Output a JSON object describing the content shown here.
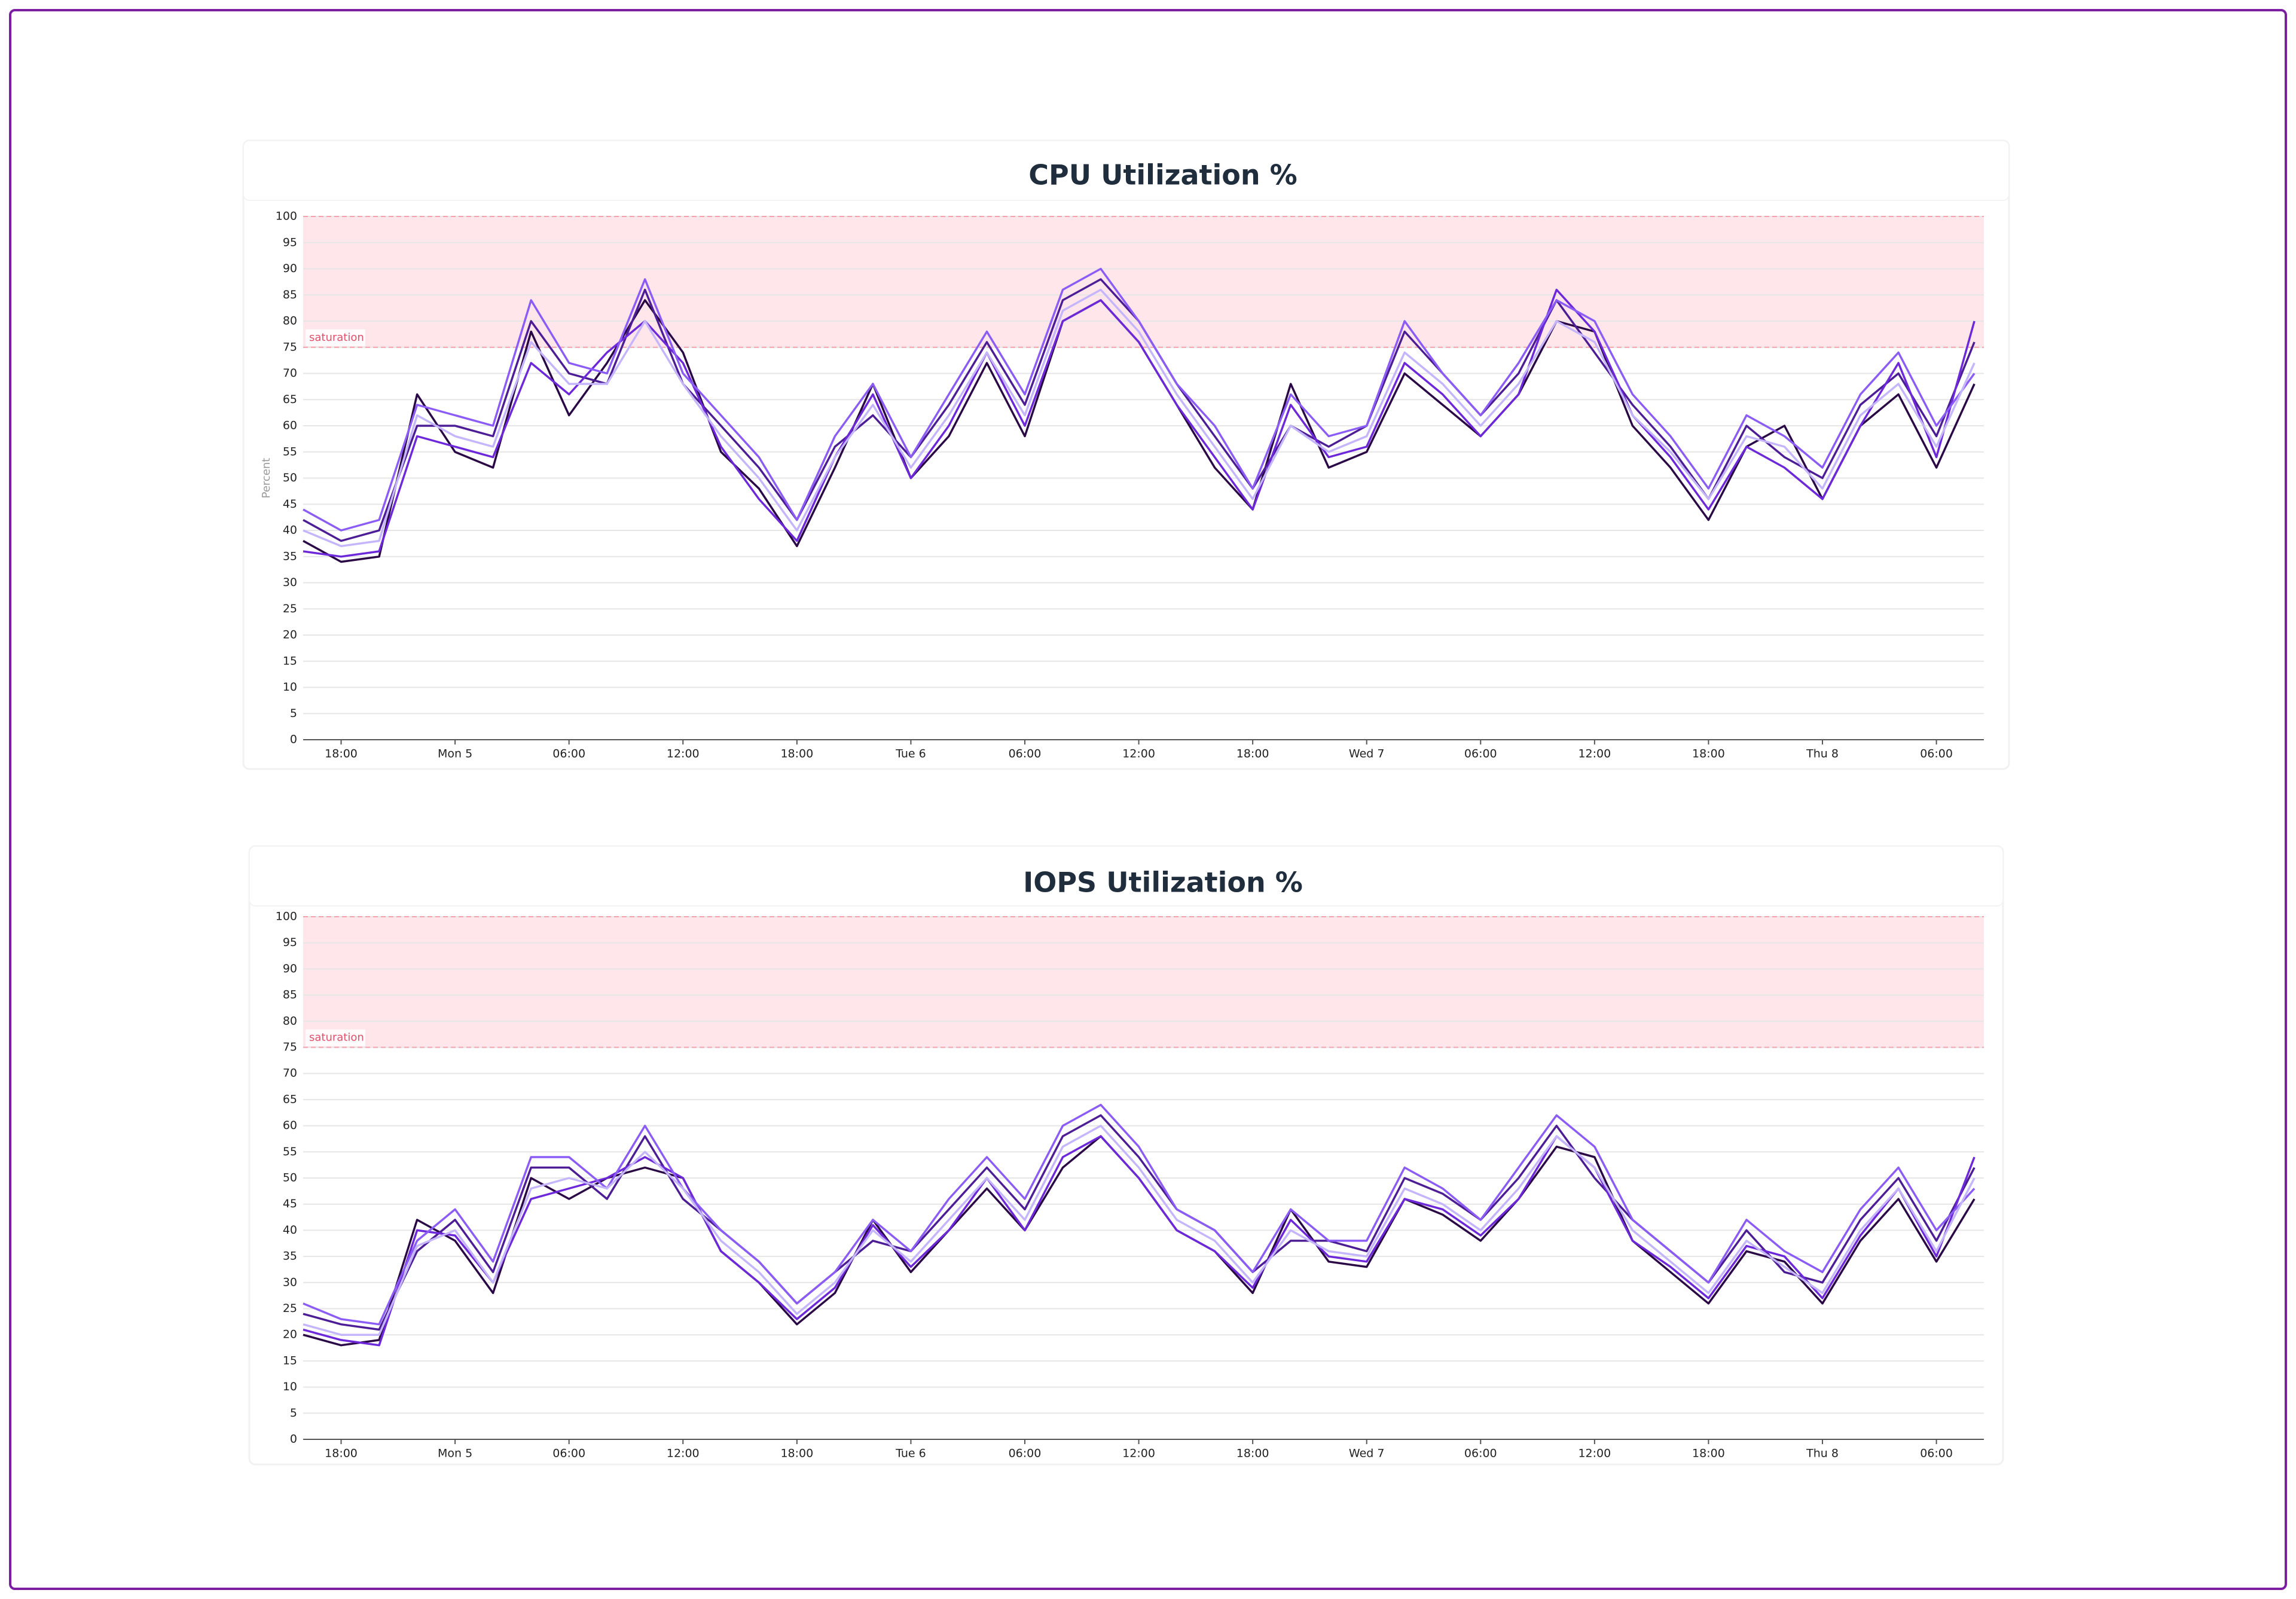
{
  "chart_data": [
    {
      "type": "line",
      "title": "CPU Utilization %",
      "y_label": "Percent",
      "band": {
        "from": 75,
        "to": 100,
        "label": "saturation"
      },
      "x": [
        -8,
        -6,
        -4,
        -2,
        0,
        2,
        4,
        6,
        8,
        10,
        12,
        14,
        16,
        18,
        20,
        22,
        24,
        26,
        28,
        30,
        32,
        34,
        36,
        38,
        40,
        42,
        44,
        46,
        48,
        50,
        52,
        54,
        56,
        58,
        60,
        62,
        64,
        66,
        68,
        70,
        72,
        74,
        76,
        78,
        80
      ],
      "xlim": [
        -8,
        80.5
      ],
      "xticks": [
        {
          "value": -6,
          "label": "18:00"
        },
        {
          "value": 0,
          "label": "Mon 5"
        },
        {
          "value": 6,
          "label": "06:00"
        },
        {
          "value": 12,
          "label": "12:00"
        },
        {
          "value": 18,
          "label": "18:00"
        },
        {
          "value": 24,
          "label": "Tue 6"
        },
        {
          "value": 30,
          "label": "06:00"
        },
        {
          "value": 36,
          "label": "12:00"
        },
        {
          "value": 42,
          "label": "18:00"
        },
        {
          "value": 48,
          "label": "Wed 7"
        },
        {
          "value": 54,
          "label": "06:00"
        },
        {
          "value": 60,
          "label": "12:00"
        },
        {
          "value": 66,
          "label": "18:00"
        },
        {
          "value": 72,
          "label": "Thu 8"
        },
        {
          "value": 78,
          "label": "06:00"
        }
      ],
      "ylim": [
        0,
        100
      ],
      "yticks": [
        0,
        5,
        10,
        15,
        20,
        25,
        30,
        35,
        40,
        45,
        50,
        55,
        60,
        65,
        70,
        75,
        80,
        85,
        90,
        95,
        100
      ],
      "grid": true,
      "series": [
        {
          "color": "#2a0845",
          "values": [
            38,
            34,
            35,
            66,
            55,
            52,
            78,
            62,
            72,
            84,
            74,
            55,
            48,
            37,
            52,
            68,
            50,
            58,
            72,
            58,
            80,
            84,
            76,
            64,
            52,
            44,
            68,
            52,
            55,
            70,
            64,
            58,
            66,
            80,
            78,
            60,
            52,
            42,
            56,
            60,
            46,
            60,
            66,
            52,
            68
          ]
        },
        {
          "color": "#4c1d95",
          "values": [
            42,
            38,
            40,
            60,
            60,
            58,
            80,
            70,
            68,
            86,
            68,
            60,
            52,
            42,
            56,
            62,
            54,
            64,
            76,
            64,
            84,
            88,
            80,
            68,
            58,
            48,
            60,
            56,
            60,
            78,
            70,
            62,
            70,
            84,
            74,
            64,
            56,
            46,
            60,
            54,
            50,
            64,
            70,
            58,
            76
          ]
        },
        {
          "color": "#6d28d9",
          "values": [
            36,
            35,
            36,
            58,
            56,
            54,
            72,
            66,
            74,
            80,
            72,
            56,
            46,
            38,
            54,
            66,
            50,
            60,
            74,
            60,
            80,
            84,
            76,
            64,
            54,
            44,
            64,
            54,
            56,
            72,
            66,
            58,
            66,
            86,
            78,
            62,
            54,
            44,
            56,
            52,
            46,
            60,
            72,
            54,
            80
          ]
        },
        {
          "color": "#8b5cf6",
          "values": [
            44,
            40,
            42,
            64,
            62,
            60,
            84,
            72,
            70,
            88,
            70,
            62,
            54,
            42,
            58,
            68,
            54,
            66,
            78,
            66,
            86,
            90,
            80,
            68,
            60,
            48,
            66,
            58,
            60,
            80,
            70,
            62,
            72,
            84,
            80,
            66,
            58,
            48,
            62,
            58,
            52,
            66,
            74,
            60,
            70
          ]
        },
        {
          "color": "#c4b5fd",
          "values": [
            40,
            37,
            38,
            62,
            58,
            56,
            76,
            68,
            68,
            80,
            68,
            58,
            50,
            40,
            54,
            64,
            52,
            62,
            74,
            62,
            82,
            86,
            78,
            66,
            56,
            46,
            60,
            55,
            58,
            74,
            68,
            60,
            68,
            80,
            76,
            62,
            55,
            46,
            58,
            56,
            48,
            62,
            68,
            56,
            72
          ]
        }
      ]
    },
    {
      "type": "line",
      "title": "IOPS Utilization %",
      "band": {
        "from": 75,
        "to": 100,
        "label": "saturation"
      },
      "x": [
        -8,
        -6,
        -4,
        -2,
        0,
        2,
        4,
        6,
        8,
        10,
        12,
        14,
        16,
        18,
        20,
        22,
        24,
        26,
        28,
        30,
        32,
        34,
        36,
        38,
        40,
        42,
        44,
        46,
        48,
        50,
        52,
        54,
        56,
        58,
        60,
        62,
        64,
        66,
        68,
        70,
        72,
        74,
        76,
        78,
        80
      ],
      "xlim": [
        -8,
        80.5
      ],
      "xticks": [
        {
          "value": -6,
          "label": "18:00"
        },
        {
          "value": 0,
          "label": "Mon 5"
        },
        {
          "value": 6,
          "label": "06:00"
        },
        {
          "value": 12,
          "label": "12:00"
        },
        {
          "value": 18,
          "label": "18:00"
        },
        {
          "value": 24,
          "label": "Tue 6"
        },
        {
          "value": 30,
          "label": "06:00"
        },
        {
          "value": 36,
          "label": "12:00"
        },
        {
          "value": 42,
          "label": "18:00"
        },
        {
          "value": 48,
          "label": "Wed 7"
        },
        {
          "value": 54,
          "label": "06:00"
        },
        {
          "value": 60,
          "label": "12:00"
        },
        {
          "value": 66,
          "label": "18:00"
        },
        {
          "value": 72,
          "label": "Thu 8"
        },
        {
          "value": 78,
          "label": "06:00"
        }
      ],
      "ylim": [
        0,
        100
      ],
      "yticks": [
        0,
        5,
        10,
        15,
        20,
        25,
        30,
        35,
        40,
        45,
        50,
        55,
        60,
        65,
        70,
        75,
        80,
        85,
        90,
        95,
        100
      ],
      "grid": true,
      "series": [
        {
          "color": "#2a0845",
          "values": [
            20,
            18,
            19,
            42,
            38,
            28,
            50,
            46,
            50,
            52,
            50,
            36,
            30,
            22,
            28,
            42,
            32,
            40,
            48,
            40,
            52,
            58,
            50,
            40,
            36,
            28,
            44,
            34,
            33,
            46,
            43,
            38,
            46,
            56,
            54,
            38,
            32,
            26,
            36,
            34,
            26,
            38,
            46,
            34,
            46
          ]
        },
        {
          "color": "#4c1d95",
          "values": [
            24,
            22,
            21,
            36,
            42,
            32,
            52,
            52,
            46,
            58,
            46,
            40,
            34,
            26,
            32,
            38,
            36,
            44,
            52,
            44,
            58,
            62,
            54,
            44,
            40,
            32,
            38,
            38,
            36,
            50,
            47,
            42,
            50,
            60,
            50,
            42,
            36,
            30,
            40,
            32,
            30,
            42,
            50,
            38,
            52
          ]
        },
        {
          "color": "#6d28d9",
          "values": [
            21,
            19,
            18,
            40,
            39,
            30,
            46,
            48,
            50,
            54,
            50,
            36,
            30,
            23,
            29,
            41,
            33,
            40,
            50,
            40,
            54,
            58,
            50,
            40,
            36,
            29,
            42,
            35,
            34,
            46,
            44,
            39,
            46,
            58,
            52,
            38,
            33,
            27,
            37,
            35,
            27,
            39,
            48,
            35,
            54
          ]
        },
        {
          "color": "#8b5cf6",
          "values": [
            26,
            23,
            22,
            38,
            44,
            34,
            54,
            54,
            48,
            60,
            48,
            40,
            34,
            26,
            32,
            42,
            36,
            46,
            54,
            46,
            60,
            64,
            56,
            44,
            40,
            32,
            44,
            38,
            38,
            52,
            48,
            42,
            52,
            62,
            56,
            42,
            36,
            30,
            42,
            36,
            32,
            44,
            52,
            40,
            48
          ]
        },
        {
          "color": "#c4b5fd",
          "values": [
            22,
            20,
            20,
            37,
            40,
            30,
            48,
            50,
            48,
            55,
            48,
            38,
            32,
            24,
            30,
            40,
            34,
            42,
            50,
            42,
            56,
            60,
            52,
            42,
            38,
            30,
            40,
            36,
            35,
            48,
            45,
            40,
            48,
            58,
            52,
            40,
            34,
            28,
            38,
            33,
            28,
            40,
            48,
            36,
            50
          ]
        }
      ]
    }
  ]
}
